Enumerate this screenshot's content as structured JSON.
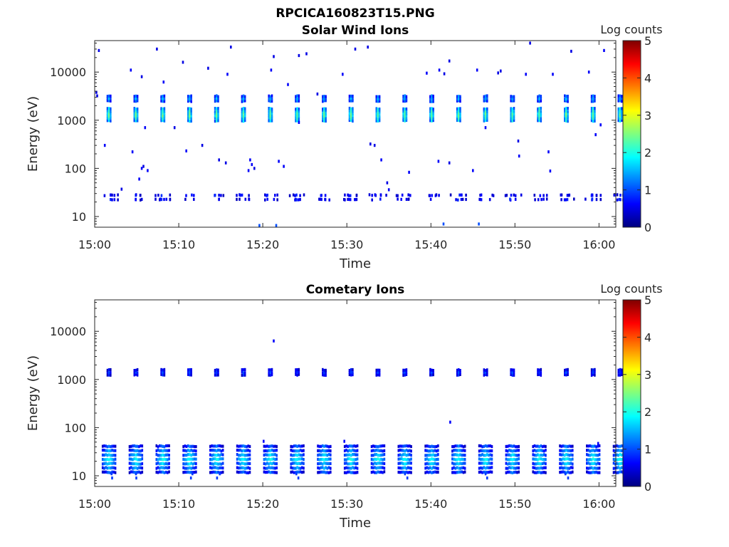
{
  "figure_title": "RPCICA160823T15.PNG",
  "colorbar": {
    "colors": [
      "#00007f",
      "#0000ff",
      "#007fff",
      "#00ffff",
      "#7fff7f",
      "#ffff00",
      "#ff7f00",
      "#ff0000",
      "#7f0000"
    ]
  },
  "chart_data": [
    {
      "type": "heatmap",
      "title": "Solar Wind Ions",
      "xlabel": "Time",
      "ylabel": "Energy (eV)",
      "y_scale": "log",
      "ylim": [
        6,
        45000
      ],
      "xlim": [
        "15:00",
        "16:02"
      ],
      "x_ticks": [
        "15:00",
        "15:10",
        "15:20",
        "15:30",
        "15:40",
        "15:50",
        "16:00"
      ],
      "y_ticks": [
        "10",
        "100",
        "1000",
        "10000"
      ],
      "colorbar_label": "Log counts",
      "colorbar_ticks": [
        "0",
        "1",
        "2",
        "3",
        "4",
        "5"
      ],
      "clim": [
        0,
        5
      ],
      "pulse_start_min": 1.8,
      "pulse_period_min": 3.2,
      "pulse_count": 20,
      "features": [
        {
          "name": "main peak",
          "energy_eV": 1300,
          "log_counts": 2.3
        },
        {
          "name": "upper band",
          "energy_eV": 2800,
          "log_counts": 1.4
        },
        {
          "name": "low-energy band",
          "energy_eV": 25,
          "log_counts": 0.8
        }
      ],
      "sparse_points": [
        [
          0.5,
          28000,
          0.5
        ],
        [
          4.3,
          11000,
          0.6
        ],
        [
          5.6,
          8000,
          0.5
        ],
        [
          7.4,
          30000,
          0.5
        ],
        [
          8.2,
          6200,
          0.6
        ],
        [
          10.5,
          16000,
          0.5
        ],
        [
          13.5,
          12000,
          0.5
        ],
        [
          15.8,
          9000,
          0.6
        ],
        [
          16.2,
          33000,
          0.5
        ],
        [
          21.0,
          11000,
          0.6
        ],
        [
          21.3,
          21000,
          0.5
        ],
        [
          23.0,
          5500,
          0.6
        ],
        [
          24.3,
          22000,
          0.5
        ],
        [
          25.2,
          24000,
          0.5
        ],
        [
          29.5,
          9000,
          0.6
        ],
        [
          31.0,
          30000,
          0.5
        ],
        [
          32.5,
          33000,
          0.5
        ],
        [
          39.5,
          9500,
          0.6
        ],
        [
          41.0,
          11000,
          0.6
        ],
        [
          41.6,
          9200,
          0.5
        ],
        [
          42.2,
          17000,
          0.5
        ],
        [
          45.5,
          11000,
          0.6
        ],
        [
          48.0,
          9600,
          0.5
        ],
        [
          48.3,
          10500,
          0.5
        ],
        [
          51.3,
          9000,
          0.6
        ],
        [
          51.8,
          40000,
          0.5
        ],
        [
          54.5,
          9000,
          0.6
        ],
        [
          56.7,
          27000,
          0.5
        ],
        [
          58.8,
          10000,
          0.6
        ],
        [
          60.6,
          28000,
          0.6
        ],
        [
          0.3,
          3200,
          0.5
        ],
        [
          0.2,
          3800,
          0.5
        ],
        [
          6.0,
          700,
          0.6
        ],
        [
          9.5,
          700,
          0.5
        ],
        [
          24.3,
          900,
          0.6
        ],
        [
          26.5,
          3500,
          0.5
        ],
        [
          46.5,
          700,
          0.6
        ],
        [
          59.6,
          500,
          0.6
        ],
        [
          60.2,
          800,
          0.6
        ],
        [
          1.2,
          300,
          0.6
        ],
        [
          4.5,
          220,
          0.6
        ],
        [
          5.6,
          100,
          0.6
        ],
        [
          5.8,
          110,
          0.5
        ],
        [
          6.3,
          90,
          0.6
        ],
        [
          12.8,
          300,
          0.5
        ],
        [
          10.9,
          230,
          0.6
        ],
        [
          14.8,
          150,
          0.5
        ],
        [
          15.6,
          130,
          0.5
        ],
        [
          18.5,
          150,
          0.6
        ],
        [
          18.7,
          120,
          0.6
        ],
        [
          18.3,
          90,
          0.6
        ],
        [
          19.0,
          100,
          0.5
        ],
        [
          21.9,
          140,
          0.6
        ],
        [
          22.5,
          110,
          0.6
        ],
        [
          32.8,
          320,
          0.5
        ],
        [
          33.3,
          300,
          0.5
        ],
        [
          34.1,
          150,
          0.6
        ],
        [
          37.4,
          83,
          0.6
        ],
        [
          40.9,
          140,
          0.6
        ],
        [
          42.2,
          130,
          0.5
        ],
        [
          45.0,
          90,
          0.6
        ],
        [
          50.5,
          180,
          0.6
        ],
        [
          50.4,
          370,
          0.5
        ],
        [
          54.0,
          220,
          0.6
        ],
        [
          54.2,
          88,
          0.6
        ],
        [
          3.2,
          37,
          0.5
        ],
        [
          5.3,
          60,
          0.6
        ],
        [
          34.8,
          50,
          0.5
        ],
        [
          35.0,
          36,
          0.6
        ],
        [
          41.5,
          7,
          1.0
        ],
        [
          45.7,
          7,
          1.0
        ],
        [
          19.6,
          6.5,
          1.0
        ],
        [
          21.6,
          6.5,
          1.0
        ]
      ]
    },
    {
      "type": "heatmap",
      "title": "Cometary Ions",
      "xlabel": "Time",
      "ylabel": "Energy (eV)",
      "y_scale": "log",
      "ylim": [
        6,
        45000
      ],
      "xlim": [
        "15:00",
        "16:02"
      ],
      "x_ticks": [
        "15:00",
        "15:10",
        "15:20",
        "15:30",
        "15:40",
        "15:50",
        "16:00"
      ],
      "y_ticks": [
        "10",
        "100",
        "1000",
        "10000"
      ],
      "colorbar_label": "Log counts",
      "colorbar_ticks": [
        "0",
        "1",
        "2",
        "3",
        "4",
        "5"
      ],
      "clim": [
        0,
        5
      ],
      "pulse_start_min": 1.8,
      "pulse_period_min": 3.2,
      "pulse_count": 20,
      "features": [
        {
          "name": "upper band",
          "energy_eV": 1400,
          "log_counts": 0.9
        },
        {
          "name": "low-energy band",
          "energy_eV": 22,
          "log_counts": 1.8
        }
      ],
      "sparse_points": [
        [
          21.3,
          6300,
          0.6
        ],
        [
          20.1,
          52,
          0.6
        ],
        [
          29.7,
          52,
          0.6
        ],
        [
          42.3,
          130,
          0.6
        ],
        [
          59.9,
          47,
          0.6
        ]
      ]
    }
  ]
}
